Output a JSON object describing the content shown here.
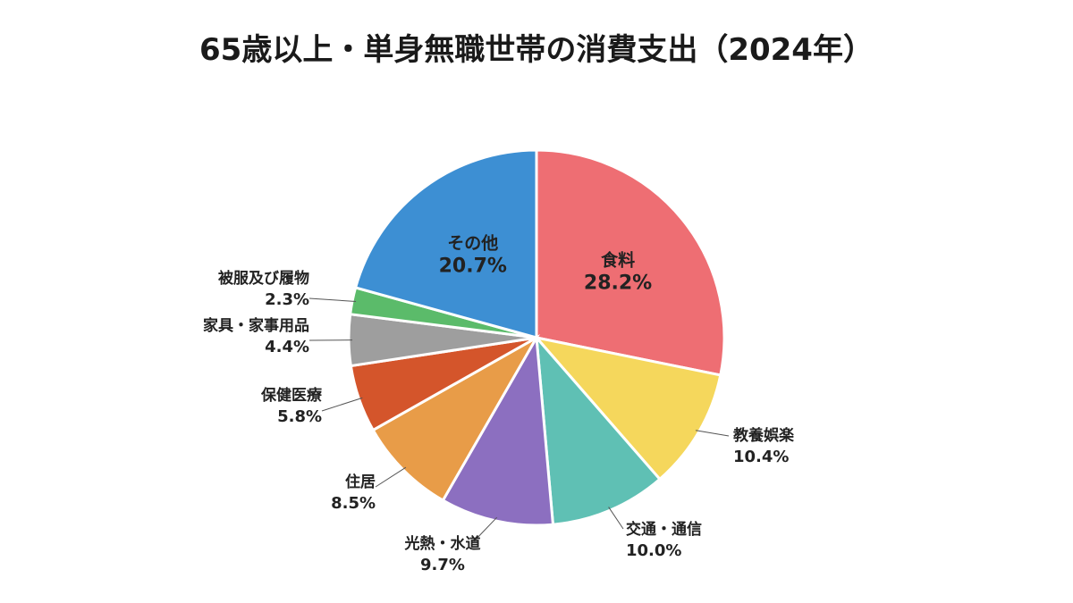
{
  "chart_data": {
    "type": "pie",
    "title": "65歳以上・単身無職世帯の消費支出（2024年）",
    "start_angle_deg": 0,
    "direction": "clockwise",
    "slices": [
      {
        "label": "食料",
        "value": 28.2,
        "value_label": "28.2%",
        "color": "#ee6e73",
        "label_position": "inside"
      },
      {
        "label": "教養娯楽",
        "value": 10.4,
        "value_label": "10.4%",
        "color": "#f5d75c",
        "label_position": "outside"
      },
      {
        "label": "交通・通信",
        "value": 10.0,
        "value_label": "10.0%",
        "color": "#5fc0b4",
        "label_position": "outside"
      },
      {
        "label": "光熱・水道",
        "value": 9.7,
        "value_label": "9.7%",
        "color": "#8c6fc0",
        "label_position": "outside"
      },
      {
        "label": "住居",
        "value": 8.5,
        "value_label": "8.5%",
        "color": "#e89c48",
        "label_position": "outside"
      },
      {
        "label": "保健医療",
        "value": 5.8,
        "value_label": "5.8%",
        "color": "#d4552b",
        "label_position": "outside"
      },
      {
        "label": "家具・家事用品",
        "value": 4.4,
        "value_label": "4.4%",
        "color": "#9e9e9e",
        "label_position": "outside"
      },
      {
        "label": "被服及び履物",
        "value": 2.3,
        "value_label": "2.3%",
        "color": "#5bbb6a",
        "label_position": "outside"
      },
      {
        "label": "その他",
        "value": 20.7,
        "value_label": "20.7%",
        "color": "#3d8fd3",
        "label_position": "inside"
      }
    ]
  }
}
